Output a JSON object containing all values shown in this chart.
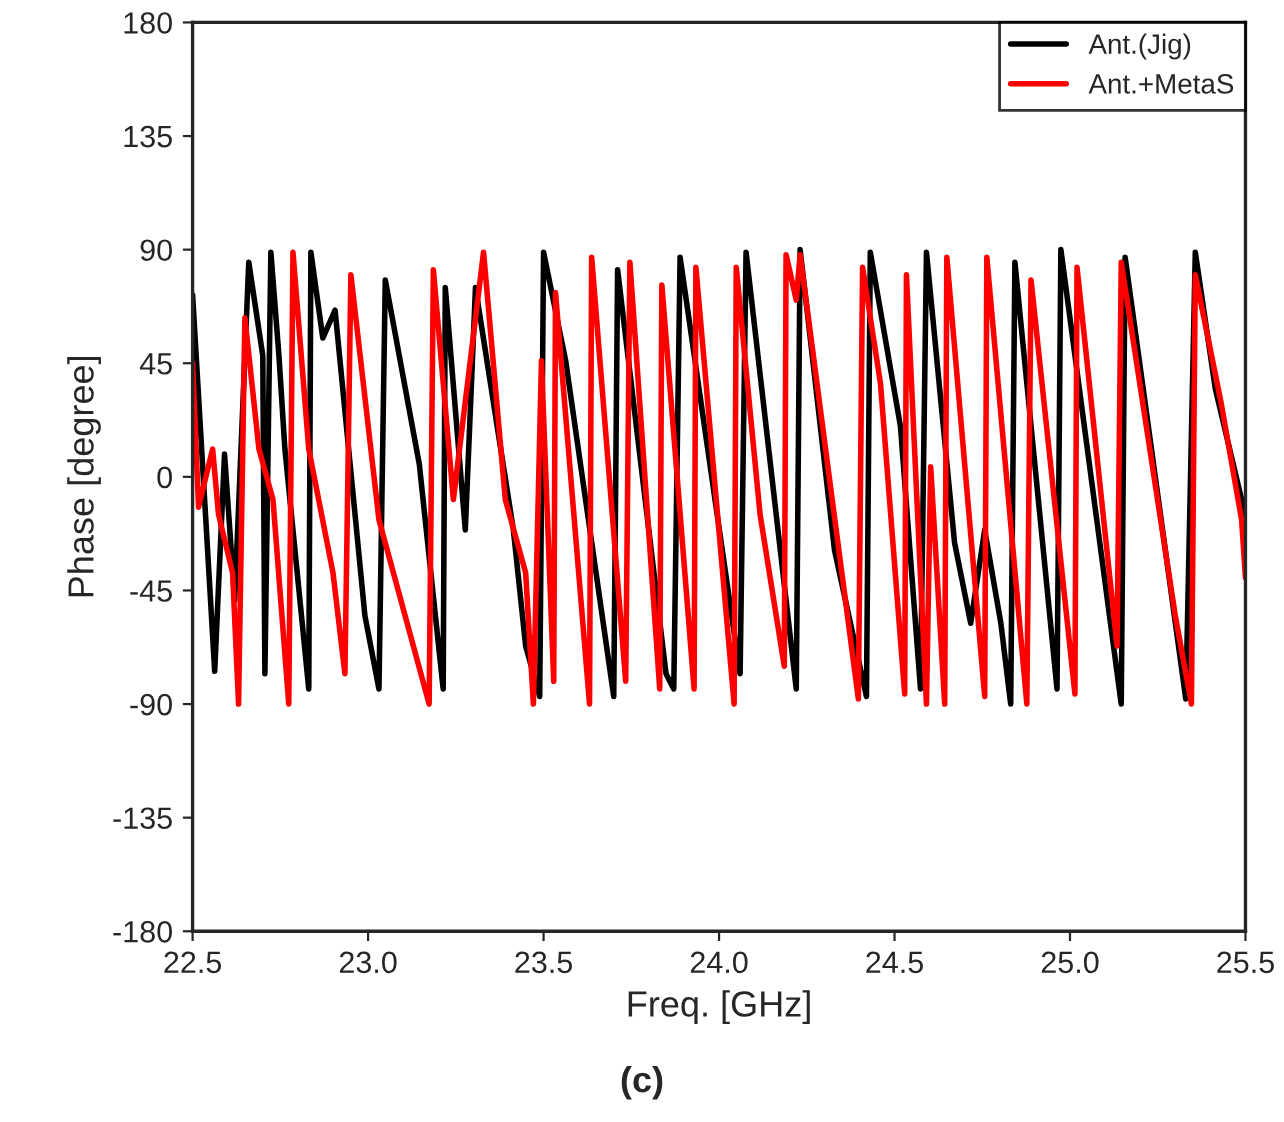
{
  "chart_data": {
    "type": "line",
    "xlabel": "Freq. [GHz]",
    "ylabel": "Phase [degree]",
    "xlim": [
      22.5,
      25.5
    ],
    "xticks": [
      22.5,
      {
        "value": 23.0,
        "label": "23.0"
      },
      23.5,
      {
        "value": 24.0,
        "label": "24.0"
      },
      24.5,
      {
        "value": 25.0,
        "label": "25.0"
      },
      25.5
    ],
    "ylim": [
      -180,
      180
    ],
    "yticks": [
      -180,
      -135,
      -90,
      -45,
      0,
      45,
      90,
      135,
      180
    ],
    "grid": false,
    "legend": "top right",
    "marker": "none",
    "line_style": "solid",
    "annotations": [
      "(c)"
    ],
    "series": [
      {
        "name": "Ant.(Jig)",
        "color": "#000000",
        "x": [
          22.5,
          22.563,
          22.591,
          22.62,
          22.66,
          22.7,
          22.706,
          22.723,
          22.746,
          22.763,
          22.831,
          22.837,
          22.871,
          22.906,
          22.991,
          23.031,
          23.049,
          23.146,
          23.214,
          23.22,
          23.277,
          23.306,
          23.414,
          23.449,
          23.489,
          23.5,
          23.563,
          23.7,
          23.711,
          23.849,
          23.871,
          23.889,
          24.06,
          24.077,
          24.22,
          24.231,
          24.329,
          24.42,
          24.431,
          24.517,
          24.574,
          24.591,
          24.671,
          24.717,
          24.757,
          24.803,
          24.831,
          24.843,
          24.963,
          24.974,
          25.146,
          25.157,
          25.33,
          25.357,
          25.414,
          25.489,
          25.5
        ],
        "values": [
          72,
          -77,
          9,
          -49,
          85,
          48,
          -78,
          89,
          48,
          11,
          -84,
          89,
          55,
          66,
          -55,
          -84,
          78,
          5,
          -84,
          75,
          -21,
          75,
          -21,
          -67,
          -87,
          89,
          46,
          -87,
          82,
          -78,
          -84,
          87,
          -78,
          89,
          -84,
          90,
          -29,
          -87,
          89,
          20,
          -84,
          89,
          -26,
          -58,
          -21,
          -58,
          -90,
          85,
          -84,
          90,
          -90,
          87,
          -88,
          89,
          35,
          -9,
          -15
        ]
      },
      {
        "name": "Ant.+MetaS",
        "color": "#ff0000",
        "x": [
          22.5,
          22.517,
          22.557,
          22.574,
          22.614,
          22.631,
          22.649,
          22.689,
          22.729,
          22.774,
          22.786,
          22.831,
          22.9,
          22.934,
          22.951,
          23.031,
          23.174,
          23.186,
          23.243,
          23.329,
          23.391,
          23.449,
          23.471,
          23.494,
          23.529,
          23.534,
          23.631,
          23.637,
          23.734,
          23.746,
          23.831,
          23.837,
          23.929,
          23.934,
          24.043,
          24.049,
          24.117,
          24.186,
          24.191,
          24.22,
          24.231,
          24.397,
          24.409,
          24.46,
          24.529,
          24.534,
          24.591,
          24.603,
          24.643,
          24.649,
          24.757,
          24.763,
          24.877,
          24.889,
          25.014,
          25.02,
          25.134,
          25.146,
          25.3,
          25.346,
          25.357,
          25.431,
          25.489,
          25.5
        ],
        "values": [
          45,
          -12,
          11,
          -15,
          -38,
          -90,
          63,
          11,
          -9,
          -90,
          89,
          11,
          -38,
          -78,
          80,
          -17,
          -90,
          82,
          -9,
          89,
          -9,
          -38,
          -90,
          46,
          -81,
          73,
          -90,
          87,
          -81,
          85,
          -84,
          76,
          -84,
          83,
          -90,
          83,
          -15,
          -75,
          88,
          70,
          88,
          -88,
          83,
          37,
          -86,
          80,
          -90,
          4,
          -90,
          87,
          -87,
          87,
          -90,
          78,
          -86,
          83,
          -67,
          85,
          -55,
          -90,
          80,
          29,
          -17,
          -40
        ]
      }
    ]
  }
}
